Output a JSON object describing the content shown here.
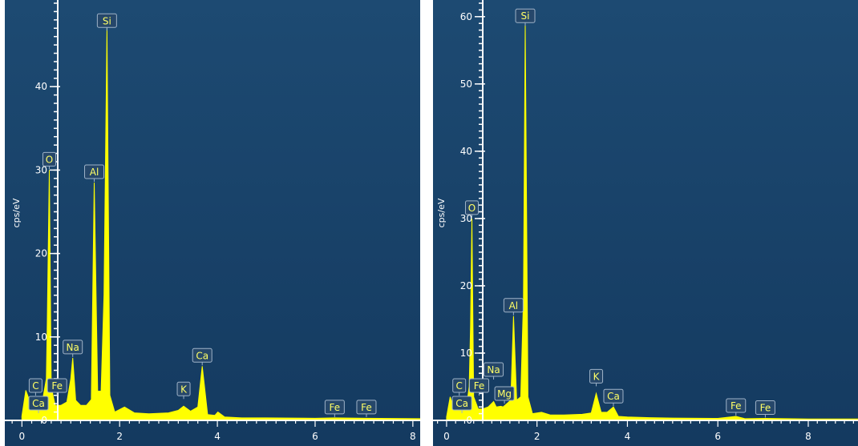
{
  "chart_data": [
    {
      "type": "area",
      "title": "",
      "ylabel": "cps/eV",
      "xlabel": "",
      "xlim": [
        -0.35,
        8.15
      ],
      "ylim": [
        0,
        50
      ],
      "yticks": [
        0,
        10,
        20,
        30,
        40
      ],
      "xticks": [
        0,
        2,
        4,
        6,
        8
      ],
      "series": [
        {
          "x": [
            0.0,
            0.08,
            0.2,
            0.28,
            0.36,
            0.42,
            0.5,
            0.52,
            0.56,
            0.6,
            0.68,
            0.8,
            0.92,
            1.0,
            1.04,
            1.1,
            1.2,
            1.32,
            1.42,
            1.48,
            1.55,
            1.62,
            1.68,
            1.74,
            1.8,
            1.9,
            2.1,
            2.3,
            2.6,
            3.0,
            3.2,
            3.31,
            3.45,
            3.6,
            3.69,
            3.8,
            3.95,
            4.01,
            4.15,
            4.5,
            5.0,
            6.0,
            6.4,
            7.05,
            8.15
          ],
          "y": [
            0.5,
            3.6,
            1.7,
            1.5,
            1.5,
            2.3,
            5.0,
            12.0,
            30.0,
            4.0,
            1.8,
            1.8,
            2.2,
            5.0,
            7.5,
            2.4,
            1.8,
            1.8,
            2.5,
            28.5,
            3.5,
            3.5,
            15.0,
            47.0,
            3.0,
            1.0,
            1.6,
            0.9,
            0.8,
            0.9,
            1.2,
            1.7,
            1.1,
            1.6,
            6.5,
            0.7,
            0.6,
            1.0,
            0.4,
            0.3,
            0.3,
            0.25,
            0.3,
            0.25,
            0.2
          ]
        }
      ],
      "peaks": [
        {
          "label": "Si",
          "x": 1.74,
          "y": 47.0
        },
        {
          "label": "O",
          "x": 0.56,
          "y": 30.0
        },
        {
          "label": "Al",
          "x": 1.48,
          "y": 28.5
        },
        {
          "label": "Na",
          "x": 1.04,
          "y": 7.5
        },
        {
          "label": "Ca",
          "x": 3.69,
          "y": 6.5
        },
        {
          "label": "K",
          "x": 3.31,
          "y": 1.7
        },
        {
          "label": "C",
          "x": 0.28,
          "y": 1.5
        },
        {
          "label": "Ca",
          "x": 0.34,
          "y": 0.3
        },
        {
          "label": "Fe",
          "x": 0.7,
          "y": 1.5
        },
        {
          "label": "Fe",
          "x": 6.4,
          "y": 0.3
        },
        {
          "label": "Fe",
          "x": 7.05,
          "y": 0.3
        }
      ]
    },
    {
      "type": "area",
      "title": "",
      "ylabel": "cps/eV",
      "xlabel": "",
      "xlim": [
        -0.3,
        9.1
      ],
      "ylim": [
        0,
        62
      ],
      "yticks": [
        0,
        10,
        20,
        30,
        40,
        50,
        60
      ],
      "xticks": [
        0,
        2,
        4,
        6,
        8
      ],
      "series": [
        {
          "x": [
            0.0,
            0.08,
            0.18,
            0.28,
            0.36,
            0.44,
            0.5,
            0.53,
            0.56,
            0.6,
            0.7,
            0.8,
            0.92,
            1.04,
            1.1,
            1.2,
            1.25,
            1.3,
            1.42,
            1.48,
            1.55,
            1.64,
            1.7,
            1.74,
            1.8,
            1.9,
            2.1,
            2.3,
            2.6,
            3.0,
            3.2,
            3.31,
            3.42,
            3.55,
            3.69,
            3.8,
            4.0,
            4.5,
            5.0,
            6.0,
            6.4,
            6.6,
            7.05,
            8.0,
            9.1
          ],
          "y": [
            0.5,
            3.5,
            1.5,
            1.5,
            1.6,
            2.0,
            5.0,
            14.0,
            30.0,
            3.5,
            1.7,
            1.7,
            2.0,
            2.8,
            2.0,
            2.1,
            2.0,
            2.3,
            3.0,
            15.5,
            3.0,
            3.5,
            18.0,
            59.0,
            3.5,
            1.0,
            1.2,
            0.8,
            0.8,
            0.9,
            1.1,
            4.0,
            1.2,
            1.2,
            2.0,
            0.6,
            0.5,
            0.4,
            0.35,
            0.3,
            0.6,
            0.25,
            0.3,
            0.2,
            0.2
          ]
        }
      ],
      "peaks": [
        {
          "label": "Si",
          "x": 1.74,
          "y": 59.0
        },
        {
          "label": "O",
          "x": 0.56,
          "y": 30.0
        },
        {
          "label": "Al",
          "x": 1.48,
          "y": 15.5
        },
        {
          "label": "Na",
          "x": 1.04,
          "y": 2.8
        },
        {
          "label": "Mg",
          "x": 1.25,
          "y": 2.0
        },
        {
          "label": "K",
          "x": 3.31,
          "y": 4.0
        },
        {
          "label": "Ca",
          "x": 3.69,
          "y": 2.0
        },
        {
          "label": "C",
          "x": 0.28,
          "y": 1.5
        },
        {
          "label": "Ca",
          "x": 0.34,
          "y": 0.3
        },
        {
          "label": "Fe",
          "x": 0.7,
          "y": 1.5
        },
        {
          "label": "Fe",
          "x": 6.4,
          "y": 0.6
        },
        {
          "label": "Fe",
          "x": 7.05,
          "y": 0.3
        }
      ]
    }
  ],
  "style": {
    "background_top": "#1d4a72",
    "background_bottom": "#143a60",
    "spectrum_color": "#ffff00",
    "label_box_fill": "#26476a",
    "label_box_stroke": "#9fb3c8",
    "label_text": "#ffff66",
    "axis_color": "#ffffff"
  }
}
